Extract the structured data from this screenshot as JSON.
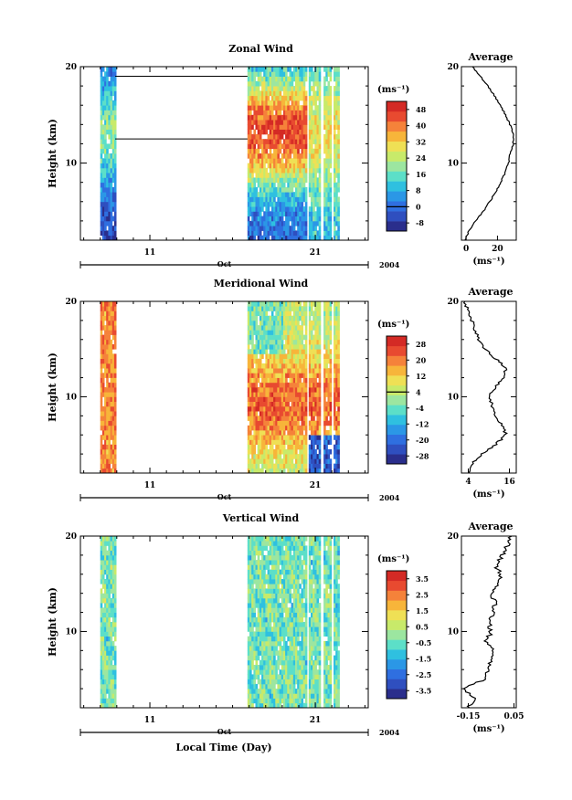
{
  "colors": {
    "palette": [
      "#2a2e8c",
      "#2f4fbf",
      "#2f6fe0",
      "#2b97e6",
      "#2fc0e0",
      "#5cdfc8",
      "#9ce6a0",
      "#c8ea6a",
      "#efe055",
      "#f7b53a",
      "#f5823a",
      "#e84a30",
      "#d42a25"
    ],
    "line": "#000000"
  },
  "figure": {
    "x_label": "Local Time (Day)",
    "month_label": "Oct",
    "year_label": "2004",
    "height_label": "Height (km)",
    "average_title": "Average"
  },
  "chart_data": [
    {
      "type": "heatmap",
      "title": "Zonal Wind",
      "xlabel": "Local Time (Day)",
      "ylabel": "Height (km)",
      "ylim": [
        2,
        20
      ],
      "yticks": [
        10,
        20
      ],
      "xticks": [
        11,
        21
      ],
      "unit": "(ms⁻¹)",
      "colorbar": [
        -8,
        0,
        8,
        16,
        24,
        32,
        40,
        48
      ],
      "colorbar_range": [
        -12,
        52
      ],
      "profile": {
        "title": "Average",
        "xticks": [
          0,
          20
        ],
        "xlim": [
          -3,
          32
        ],
        "unit": "(ms⁻¹)",
        "heights": [
          2,
          3,
          4,
          5,
          6,
          7,
          8,
          9,
          10,
          11,
          12,
          13,
          14,
          15,
          16,
          17,
          18,
          19,
          20
        ],
        "values": [
          -1,
          2,
          6,
          11,
          15,
          19,
          22,
          25,
          27,
          28,
          30,
          30,
          28,
          25,
          22,
          18,
          14,
          9,
          4
        ]
      }
    },
    {
      "type": "heatmap",
      "title": "Meridional Wind",
      "xlabel": "Local Time (Day)",
      "ylabel": "Height (km)",
      "ylim": [
        2,
        20
      ],
      "yticks": [
        10,
        20
      ],
      "xticks": [
        11,
        21
      ],
      "unit": "(ms⁻¹)",
      "colorbar": [
        -28,
        -20,
        -12,
        -4,
        4,
        12,
        20,
        28
      ],
      "colorbar_range": [
        -32,
        32
      ],
      "profile": {
        "title": "Average",
        "xticks": [
          4,
          16
        ],
        "xlim": [
          2,
          18
        ],
        "unit": "(ms⁻¹)",
        "heights": [
          2,
          3,
          4,
          5,
          6,
          7,
          8,
          9,
          10,
          11,
          12,
          13,
          14,
          15,
          16,
          17,
          18,
          19,
          20
        ],
        "values": [
          4,
          5,
          8,
          12,
          15,
          14,
          12,
          11,
          10,
          12,
          14,
          15,
          12,
          9,
          7,
          6,
          5,
          4,
          3
        ]
      }
    },
    {
      "type": "heatmap",
      "title": "Vertical Wind",
      "xlabel": "Local Time (Day)",
      "ylabel": "Height (km)",
      "ylim": [
        2,
        20
      ],
      "yticks": [
        10,
        20
      ],
      "xticks": [
        11,
        21
      ],
      "unit": "(ms⁻¹)",
      "colorbar": [
        -3.5,
        -2.5,
        -1.5,
        -0.5,
        0.5,
        1.5,
        2.5,
        3.5
      ],
      "colorbar_range": [
        -4,
        4
      ],
      "profile": {
        "title": "Average",
        "xticks": [
          -0.15,
          0.05
        ],
        "xlim": [
          -0.18,
          0.06
        ],
        "unit": "(ms⁻¹)",
        "heights": [
          2,
          3,
          4,
          5,
          6,
          7,
          8,
          9,
          10,
          11,
          12,
          13,
          14,
          15,
          16,
          17,
          18,
          19,
          20
        ],
        "values": [
          -0.15,
          -0.12,
          -0.17,
          -0.08,
          -0.06,
          -0.05,
          -0.04,
          -0.07,
          -0.05,
          -0.06,
          -0.04,
          -0.03,
          -0.05,
          -0.02,
          -0.01,
          -0.03,
          0.0,
          0.02,
          0.04
        ]
      }
    }
  ]
}
